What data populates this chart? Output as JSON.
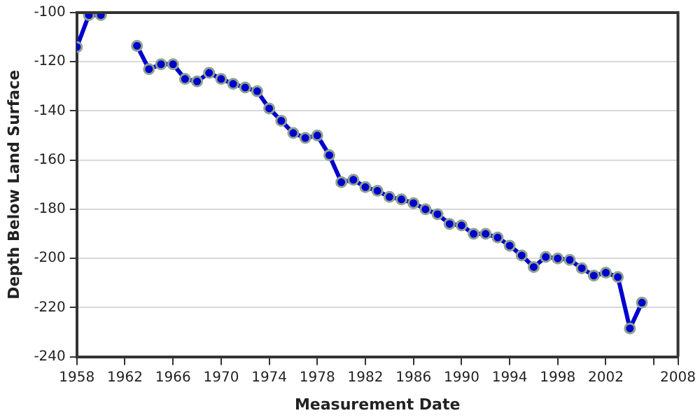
{
  "chart_data": {
    "type": "line",
    "xlabel": "Measurement Date",
    "ylabel": "Depth Below Land Surface",
    "x": [
      1958,
      1959,
      1960,
      1961,
      1962,
      1963,
      1964,
      1965,
      1966,
      1967,
      1968,
      1969,
      1970,
      1971,
      1972,
      1973,
      1974,
      1975,
      1976,
      1977,
      1978,
      1979,
      1980,
      1981,
      1982,
      1983,
      1984,
      1985,
      1986,
      1987,
      1988,
      1989,
      1990,
      1991,
      1992,
      1993,
      1994,
      1995,
      1996,
      1997,
      1998,
      1999,
      2000,
      2001,
      2002,
      2003,
      2004,
      2005
    ],
    "series": [
      {
        "color": "#0000cc",
        "values": [
          -114,
          -101,
          -101,
          null,
          null,
          -113.5,
          -123,
          -121,
          -121,
          -127,
          -128,
          -124.5,
          -127,
          -129,
          -130.5,
          -132,
          -139,
          -144,
          -149,
          -151,
          -150,
          -158,
          -169,
          -168,
          -171,
          -172.5,
          -175,
          -176,
          -177.5,
          -180,
          -182,
          -186,
          -186.6,
          -190,
          -190,
          -191.5,
          -194.8,
          -198.8,
          -203.5,
          -199.4,
          -200,
          -200.6,
          -204,
          -207,
          -205.8,
          -207.6,
          -228.5,
          -218
        ]
      }
    ],
    "xlim": [
      1958,
      2008
    ],
    "xticks": [
      1958,
      1962,
      1966,
      1970,
      1974,
      1978,
      1982,
      1986,
      1990,
      1994,
      1998,
      2002,
      {
        "value": 2006,
        "label": null
      },
      2008
    ],
    "ylim": [
      -240,
      -100
    ],
    "yticks": [
      -240,
      -220,
      -200,
      -180,
      -160,
      -140,
      -120,
      -100
    ],
    "grid": "y",
    "legend": false,
    "marker": "circle",
    "line_style": "solid"
  }
}
